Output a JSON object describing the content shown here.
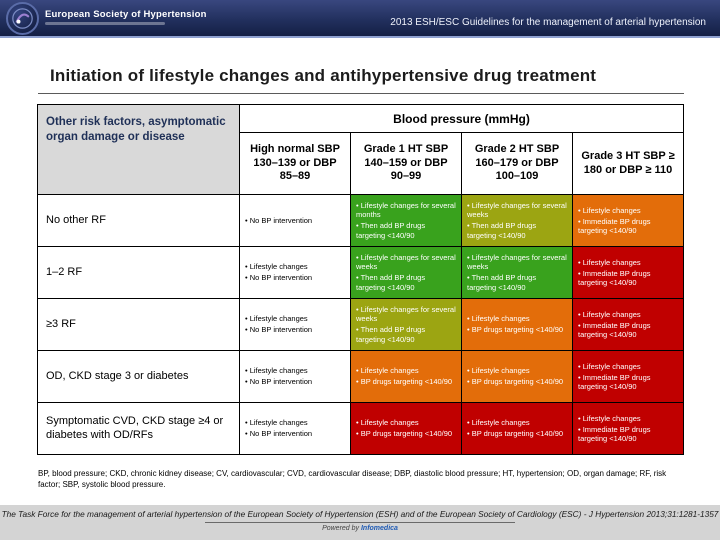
{
  "header": {
    "society": "European Society of Hypertension",
    "bar_title": "2013 ESH/ESC Guidelines for the management of arterial hypertension"
  },
  "slide": {
    "title": "Initiation of lifestyle changes and antihypertensive drug treatment"
  },
  "table": {
    "corner_header": "Other risk factors, asymptomatic organ damage or disease",
    "bp_header": "Blood pressure (mmHg)",
    "columns": [
      "High normal SBP 130–139 or DBP 85–89",
      "Grade 1 HT SBP 140–159 or DBP 90–99",
      "Grade 2 HT SBP 160–179 or DBP 100–109",
      "Grade 3 HT SBP ≥ 180 or DBP ≥ 110"
    ],
    "palette": {
      "white": "#ffffff",
      "green": "#39a21d",
      "olive": "#9ca512",
      "orange": "#e36d0a",
      "red": "#c00000"
    },
    "rows": [
      {
        "label": "No other RF",
        "cells": [
          {
            "color": "white",
            "lines": [
              "No BP intervention"
            ]
          },
          {
            "color": "green",
            "lines": [
              "Lifestyle changes for several months",
              "Then add BP drugs targeting <140/90"
            ]
          },
          {
            "color": "olive",
            "lines": [
              "Lifestyle changes for several weeks",
              "Then add BP drugs targeting <140/90"
            ]
          },
          {
            "color": "orange",
            "lines": [
              "Lifestyle changes",
              "Immediate BP drugs targeting <140/90"
            ]
          }
        ]
      },
      {
        "label": "1–2 RF",
        "cells": [
          {
            "color": "white",
            "lines": [
              "Lifestyle changes",
              "No BP intervention"
            ]
          },
          {
            "color": "green",
            "lines": [
              "Lifestyle changes for several weeks",
              "Then add BP drugs targeting <140/90"
            ]
          },
          {
            "color": "green",
            "lines": [
              "Lifestyle changes for several weeks",
              "Then add BP drugs targeting <140/90"
            ]
          },
          {
            "color": "red",
            "lines": [
              "Lifestyle changes",
              "Immediate BP drugs targeting <140/90"
            ]
          }
        ]
      },
      {
        "label": "≥3 RF",
        "cells": [
          {
            "color": "white",
            "lines": [
              "Lifestyle changes",
              "No BP intervention"
            ]
          },
          {
            "color": "olive",
            "lines": [
              "Lifestyle changes for several weeks",
              "Then add BP drugs targeting <140/90"
            ]
          },
          {
            "color": "orange",
            "lines": [
              "Lifestyle changes",
              "BP drugs targeting <140/90"
            ]
          },
          {
            "color": "red",
            "lines": [
              "Lifestyle changes",
              "Immediate BP drugs targeting <140/90"
            ]
          }
        ]
      },
      {
        "label": "OD, CKD stage 3 or diabetes",
        "cells": [
          {
            "color": "white",
            "lines": [
              "Lifestyle changes",
              "No BP intervention"
            ]
          },
          {
            "color": "orange",
            "lines": [
              "Lifestyle changes",
              "BP drugs targeting <140/90"
            ]
          },
          {
            "color": "orange",
            "lines": [
              "Lifestyle changes",
              "BP drugs targeting <140/90"
            ]
          },
          {
            "color": "red",
            "lines": [
              "Lifestyle changes",
              "Immediate BP drugs targeting <140/90"
            ]
          }
        ]
      },
      {
        "label": "Symptomatic CVD, CKD stage ≥4 or diabetes with OD/RFs",
        "cells": [
          {
            "color": "white",
            "lines": [
              "Lifestyle changes",
              "No BP intervention"
            ]
          },
          {
            "color": "red",
            "lines": [
              "Lifestyle changes",
              "BP drugs targeting <140/90"
            ]
          },
          {
            "color": "red",
            "lines": [
              "Lifestyle changes",
              "BP drugs targeting <140/90"
            ]
          },
          {
            "color": "red",
            "lines": [
              "Lifestyle changes",
              "Immediate BP drugs targeting <140/90"
            ]
          }
        ]
      }
    ]
  },
  "footnote": "BP, blood pressure; CKD, chronic kidney disease; CV, cardiovascular; CVD, cardiovascular disease; DBP, diastolic blood pressure; HT, hypertension; OD, organ damage; RF, risk factor; SBP, systolic blood pressure.",
  "footer": {
    "citation": "The Task Force for the management of arterial hypertension of the European Society of Hypertension (ESH) and of the European Society of Cardiology (ESC) - J Hypertension 2013;31:1281-1357",
    "powered_by": "Powered by",
    "powered_by_brand": "Infomedica"
  }
}
